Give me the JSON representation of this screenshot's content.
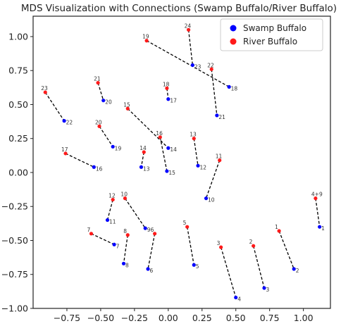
{
  "chart_data": {
    "type": "scatter",
    "title": "MDS Visualization with Connections (Swamp Buffalo/River Buffalo)",
    "xlabel": "",
    "ylabel": "",
    "xlim": [
      -1.0,
      1.2
    ],
    "ylim": [
      -1.0,
      1.15
    ],
    "xticks": [
      -0.75,
      -0.5,
      -0.25,
      0.0,
      0.25,
      0.5,
      0.75,
      1.0
    ],
    "yticks": [
      -1.0,
      -0.75,
      -0.5,
      -0.25,
      0.0,
      0.25,
      0.5,
      0.75,
      1.0
    ],
    "xtick_labels": [
      "−0.75",
      "−0.50",
      "−0.25",
      "0.00",
      "0.25",
      "0.50",
      "0.75",
      "1.00"
    ],
    "ytick_labels": [
      "−1.00",
      "−0.75",
      "−0.50",
      "−0.25",
      "0.00",
      "0.25",
      "0.50",
      "0.75",
      "1.00"
    ],
    "grid": false,
    "legend_position": "top-right",
    "colors": {
      "swamp": "#0000ff",
      "river": "#ff1a1a",
      "connection": "#000000",
      "frame": "#222222"
    },
    "series": [
      {
        "name": "Swamp Buffalo",
        "points": [
          {
            "label": "1",
            "x": 1.12,
            "y": -0.4
          },
          {
            "label": "2",
            "x": 0.93,
            "y": -0.71
          },
          {
            "label": "3",
            "x": 0.71,
            "y": -0.85
          },
          {
            "label": "4",
            "x": 0.5,
            "y": -0.92
          },
          {
            "label": "5",
            "x": 0.19,
            "y": -0.68
          },
          {
            "label": "6",
            "x": -0.15,
            "y": -0.71
          },
          {
            "label": "7",
            "x": -0.4,
            "y": -0.53
          },
          {
            "label": "8",
            "x": -0.33,
            "y": -0.67
          },
          {
            "label": "9",
            "x": -0.17,
            "y": -0.41
          },
          {
            "label": "10",
            "x": 0.28,
            "y": -0.19
          },
          {
            "label": "11",
            "x": -0.45,
            "y": -0.35
          },
          {
            "label": "12",
            "x": 0.22,
            "y": 0.05
          },
          {
            "label": "13",
            "x": -0.2,
            "y": 0.04
          },
          {
            "label": "14",
            "x": 0.0,
            "y": 0.18
          },
          {
            "label": "15",
            "x": -0.01,
            "y": 0.01
          },
          {
            "label": "16",
            "x": -0.55,
            "y": 0.04
          },
          {
            "label": "17",
            "x": 0.0,
            "y": 0.54
          },
          {
            "label": "18",
            "x": 0.45,
            "y": 0.63
          },
          {
            "label": "19",
            "x": -0.41,
            "y": 0.19
          },
          {
            "label": "20",
            "x": -0.48,
            "y": 0.53
          },
          {
            "label": "21",
            "x": 0.36,
            "y": 0.42
          },
          {
            "label": "22",
            "x": -0.77,
            "y": 0.38
          },
          {
            "label": "23",
            "x": 0.18,
            "y": 0.79
          }
        ]
      },
      {
        "name": "River Buffalo",
        "points": [
          {
            "label": "1",
            "x": 0.82,
            "y": -0.43
          },
          {
            "label": "2",
            "x": 0.63,
            "y": -0.54
          },
          {
            "label": "3",
            "x": 0.39,
            "y": -0.55
          },
          {
            "label": "4+9",
            "x": 1.09,
            "y": -0.19
          },
          {
            "label": "5",
            "x": 0.14,
            "y": -0.4
          },
          {
            "label": "6",
            "x": -0.1,
            "y": -0.45
          },
          {
            "label": "7",
            "x": -0.57,
            "y": -0.45
          },
          {
            "label": "8",
            "x": -0.3,
            "y": -0.46
          },
          {
            "label": "10",
            "x": -0.32,
            "y": -0.19
          },
          {
            "label": "11",
            "x": 0.38,
            "y": 0.09
          },
          {
            "label": "12",
            "x": -0.41,
            "y": -0.2
          },
          {
            "label": "13",
            "x": 0.19,
            "y": 0.25
          },
          {
            "label": "14",
            "x": -0.18,
            "y": 0.15
          },
          {
            "label": "15",
            "x": -0.3,
            "y": 0.47
          },
          {
            "label": "16",
            "x": -0.06,
            "y": 0.26
          },
          {
            "label": "17",
            "x": -0.76,
            "y": 0.14
          },
          {
            "label": "18",
            "x": -0.01,
            "y": 0.62
          },
          {
            "label": "19",
            "x": -0.16,
            "y": 0.97
          },
          {
            "label": "20",
            "x": -0.51,
            "y": 0.34
          },
          {
            "label": "21",
            "x": -0.52,
            "y": 0.66
          },
          {
            "label": "22",
            "x": 0.32,
            "y": 0.76
          },
          {
            "label": "23",
            "x": -0.91,
            "y": 0.59
          },
          {
            "label": "24",
            "x": 0.15,
            "y": 1.05
          }
        ]
      }
    ],
    "connections": [
      {
        "river": 1.0,
        "x1": 0.82,
        "y1": -0.43,
        "x2": 0.93,
        "y2": -0.71
      },
      {
        "x1": 0.63,
        "y1": -0.54,
        "x2": 0.71,
        "y2": -0.85
      },
      {
        "x1": 0.39,
        "y1": -0.55,
        "x2": 0.5,
        "y2": -0.92
      },
      {
        "x1": 1.09,
        "y1": -0.19,
        "x2": 1.12,
        "y2": -0.4
      },
      {
        "x1": 0.14,
        "y1": -0.4,
        "x2": 0.19,
        "y2": -0.68
      },
      {
        "x1": -0.1,
        "y1": -0.45,
        "x2": -0.15,
        "y2": -0.71
      },
      {
        "x1": -0.57,
        "y1": -0.45,
        "x2": -0.4,
        "y2": -0.53
      },
      {
        "x1": -0.3,
        "y1": -0.46,
        "x2": -0.33,
        "y2": -0.67
      },
      {
        "x1": -0.32,
        "y1": -0.19,
        "x2": -0.17,
        "y2": -0.41
      },
      {
        "x1": 0.38,
        "y1": 0.09,
        "x2": 0.28,
        "y2": -0.19
      },
      {
        "x1": -0.41,
        "y1": -0.2,
        "x2": -0.45,
        "y2": -0.35
      },
      {
        "x1": 0.19,
        "y1": 0.25,
        "x2": 0.22,
        "y2": 0.05
      },
      {
        "x1": -0.18,
        "y1": 0.15,
        "x2": -0.2,
        "y2": 0.04
      },
      {
        "x1": -0.3,
        "y1": 0.47,
        "x2": 0.0,
        "y2": 0.18
      },
      {
        "x1": -0.06,
        "y1": 0.26,
        "x2": -0.01,
        "y2": 0.01
      },
      {
        "x1": -0.76,
        "y1": 0.14,
        "x2": -0.55,
        "y2": 0.04
      },
      {
        "x1": -0.01,
        "y1": 0.62,
        "x2": 0.0,
        "y2": 0.54
      },
      {
        "x1": -0.16,
        "y1": 0.97,
        "x2": 0.45,
        "y2": 0.63
      },
      {
        "x1": -0.51,
        "y1": 0.34,
        "x2": -0.41,
        "y2": 0.19
      },
      {
        "x1": -0.52,
        "y1": 0.66,
        "x2": -0.48,
        "y2": 0.53
      },
      {
        "x1": 0.32,
        "y1": 0.76,
        "x2": 0.36,
        "y2": 0.42
      },
      {
        "x1": -0.91,
        "y1": 0.59,
        "x2": -0.77,
        "y2": 0.38
      },
      {
        "x1": 0.15,
        "y1": 1.05,
        "x2": 0.18,
        "y2": 0.79
      }
    ]
  }
}
